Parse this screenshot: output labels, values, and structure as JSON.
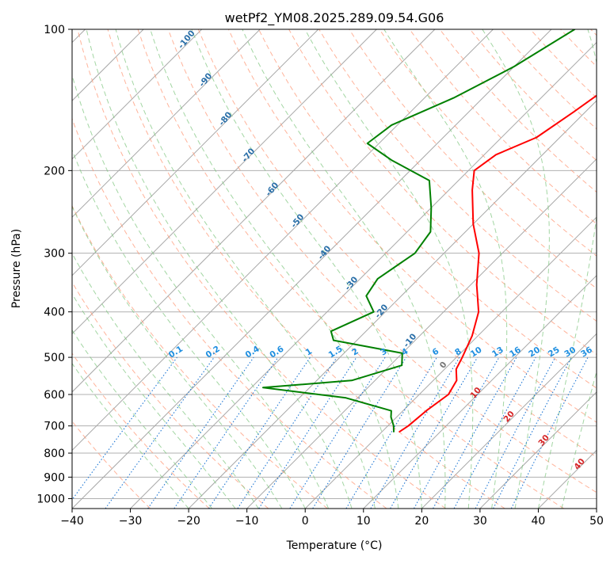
{
  "chart_data": {
    "type": "line",
    "title": "wetPf2_YM08.2025.289.09.54.G06",
    "xlabel": "Temperature (°C)",
    "ylabel": "Pressure (hPa)",
    "xlim": [
      -40,
      50
    ],
    "ylim": [
      1050,
      100
    ],
    "y_scale": "log",
    "skew": true,
    "grid": true,
    "x_ticks": [
      -40,
      -30,
      -20,
      -10,
      0,
      10,
      20,
      30,
      40,
      50
    ],
    "y_ticks": [
      1000,
      900,
      800,
      700,
      600,
      500,
      400,
      300,
      200,
      100
    ],
    "series": [
      {
        "name": "",
        "color": "#ff0000",
        "points": [
          [
            720,
            3
          ],
          [
            700,
            3.5
          ],
          [
            650,
            4
          ],
          [
            600,
            5
          ],
          [
            560,
            4
          ],
          [
            530,
            2
          ],
          [
            500,
            1
          ],
          [
            450,
            -1
          ],
          [
            400,
            -4
          ],
          [
            350,
            -9
          ],
          [
            300,
            -14
          ],
          [
            260,
            -20
          ],
          [
            220,
            -26
          ],
          [
            200,
            -29
          ],
          [
            185,
            -28
          ],
          [
            170,
            -24
          ],
          [
            150,
            -22
          ],
          [
            130,
            -20
          ],
          [
            110,
            -20
          ],
          [
            100,
            -22
          ]
        ]
      },
      {
        "name": "",
        "color": "#008000",
        "points": [
          [
            720,
            2
          ],
          [
            700,
            1
          ],
          [
            670,
            -1
          ],
          [
            650,
            -2
          ],
          [
            610,
            -12
          ],
          [
            580,
            -28
          ],
          [
            560,
            -14
          ],
          [
            520,
            -8
          ],
          [
            490,
            -10
          ],
          [
            460,
            -24
          ],
          [
            440,
            -26
          ],
          [
            400,
            -22
          ],
          [
            370,
            -26
          ],
          [
            340,
            -27
          ],
          [
            300,
            -25
          ],
          [
            270,
            -26
          ],
          [
            240,
            -30
          ],
          [
            210,
            -35
          ],
          [
            190,
            -45
          ],
          [
            175,
            -52
          ],
          [
            160,
            -51
          ],
          [
            140,
            -45
          ],
          [
            120,
            -40
          ],
          [
            100,
            -36
          ]
        ]
      }
    ],
    "mixing_ratio_labels": [
      "0.1",
      "0.2",
      "0.4",
      "0.6",
      "1",
      "1.5",
      "2",
      "3",
      "4",
      "6",
      "8",
      "10",
      "13",
      "16",
      "20",
      "25",
      "30",
      "36"
    ],
    "dry_adiabat_labels": [
      "-100",
      "-90",
      "-80",
      "-70",
      "-60",
      "-50",
      "-40",
      "-30",
      "-20",
      "-10",
      "0"
    ],
    "moist_adiabat_labels": [
      "10",
      "20",
      "30",
      "40"
    ],
    "colors": {
      "isotherm": "#a8a8a8",
      "dry_adiabat": "#ff9a78",
      "moist_adiabat": "#7cc47c",
      "mixing_ratio": "#1f77d4",
      "isobar": "#b0b0b0"
    }
  }
}
